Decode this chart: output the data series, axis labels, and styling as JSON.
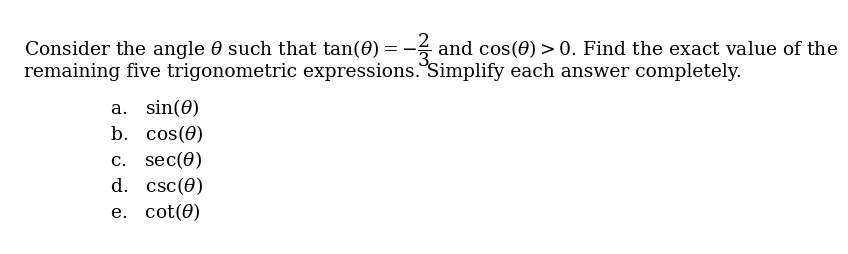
{
  "bg_color": "#ffffff",
  "text_color": "#000000",
  "title_line1": "Consider the angle θ such that tan(θ) = –",
  "fraction_num": "2",
  "fraction_den": "3",
  "title_line1_suffix": " and cos(θ) > 0. Find the exact value of the",
  "title_line2": "remaining five trigonometric expressions. Simplify each answer completely.",
  "items": [
    "a.  sin(θ)",
    "b.  cos(θ)",
    "c.  sec(θ)",
    "d.  csc(θ)",
    "e.  cot(θ)"
  ],
  "font_size_main": 13.5,
  "font_size_items": 13.5,
  "font_family": "DejaVu Serif"
}
